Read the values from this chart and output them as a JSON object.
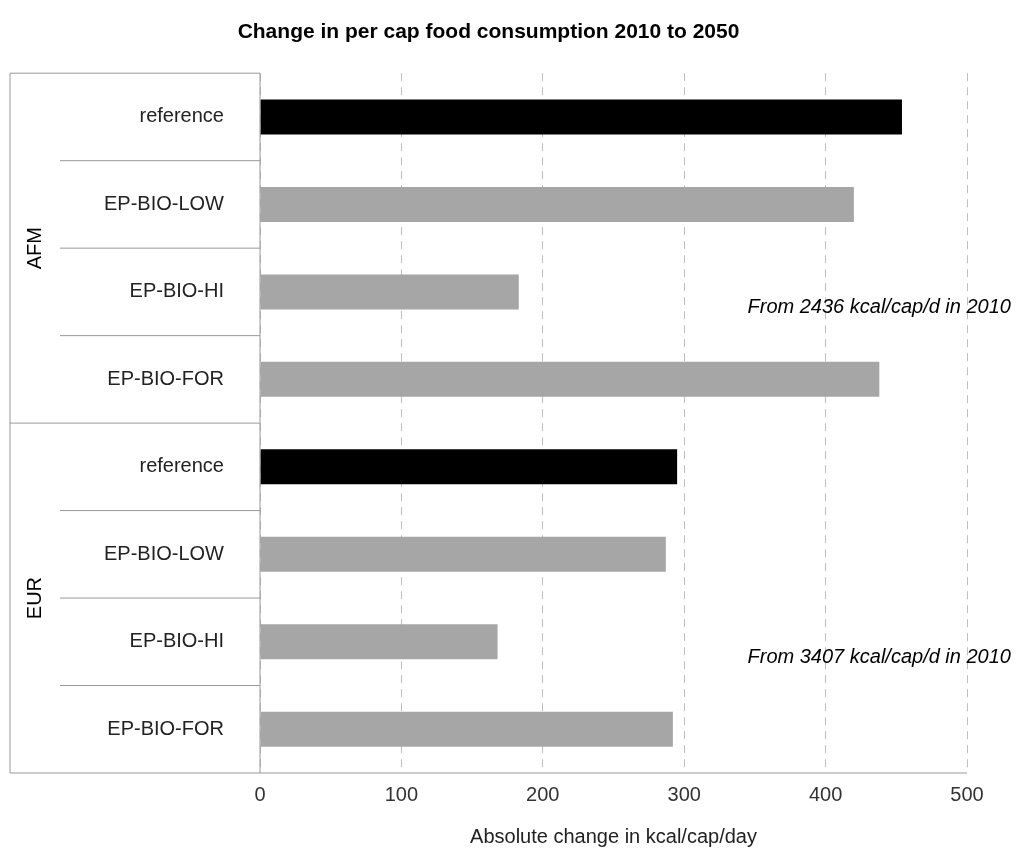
{
  "chart_data": {
    "type": "bar",
    "orientation": "horizontal",
    "title": "Change in per cap food consumption 2010 to 2050",
    "xlabel": "Absolute change in kcal/cap/day",
    "categories": [
      "reference",
      "EP-BIO-LOW",
      "EP-BIO-HI",
      "EP-BIO-FOR",
      "reference",
      "EP-BIO-LOW",
      "EP-BIO-HI",
      "EP-BIO-FOR"
    ],
    "values": [
      454,
      420,
      183,
      438,
      295,
      287,
      168,
      292
    ],
    "colors": [
      "#000000",
      "#a6a6a6",
      "#a6a6a6",
      "#a6a6a6",
      "#000000",
      "#a6a6a6",
      "#a6a6a6",
      "#a6a6a6"
    ],
    "xlim": [
      0,
      500
    ],
    "xticks": [
      0,
      100,
      200,
      300,
      400,
      500
    ],
    "grid": "x",
    "legend": false,
    "annotations": [
      "AFM",
      "From 2436 kcal/cap/d in 2010",
      "EUR",
      "From 3407 kcal/cap/d in 2010"
    ]
  }
}
